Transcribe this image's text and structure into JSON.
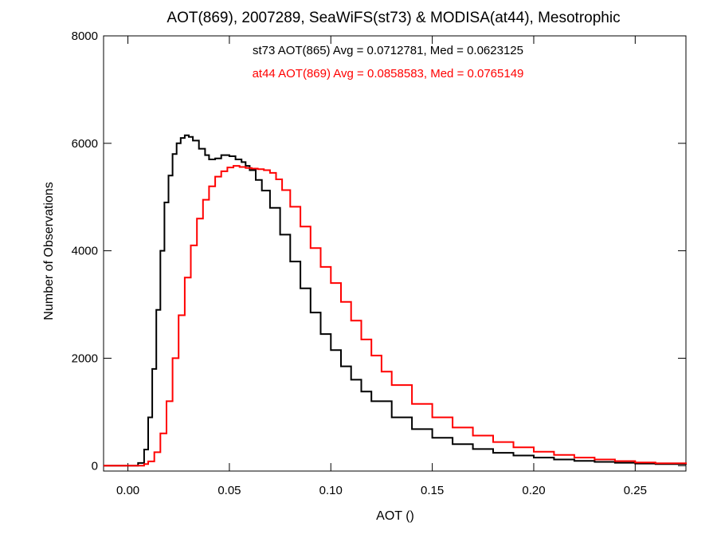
{
  "chart_data": {
    "type": "line",
    "step": true,
    "title": "AOT(869), 2007289, SeaWiFS(st73) & MODISA(at44), Mesotrophic",
    "xlabel": "AOT ()",
    "ylabel": "Number of Observations",
    "xlim": [
      -0.012,
      0.275
    ],
    "ylim": [
      -100,
      8000
    ],
    "xticks": [
      0.0,
      0.05,
      0.1,
      0.15,
      0.2,
      0.25
    ],
    "xtick_labels": [
      "0.00",
      "0.05",
      "0.10",
      "0.15",
      "0.20",
      "0.25"
    ],
    "yticks": [
      0,
      2000,
      4000,
      6000,
      8000
    ],
    "ytick_labels": [
      "0",
      "2000",
      "4000",
      "6000",
      "8000"
    ],
    "grid": false,
    "annotations": [
      {
        "text": "st73 AOT(865) Avg = 0.0712781, Med = 0.0623125",
        "color": "#000000"
      },
      {
        "text": "at44 AOT(869) Avg = 0.0858583, Med = 0.0765149",
        "color": "#ff0000"
      }
    ],
    "series": [
      {
        "color": "#000000",
        "x": [
          -0.012,
          0.003,
          0.005,
          0.008,
          0.01,
          0.012,
          0.014,
          0.016,
          0.018,
          0.02,
          0.022,
          0.024,
          0.026,
          0.028,
          0.03,
          0.032,
          0.035,
          0.038,
          0.04,
          0.043,
          0.046,
          0.05,
          0.053,
          0.056,
          0.058,
          0.06,
          0.063,
          0.066,
          0.07,
          0.075,
          0.08,
          0.085,
          0.09,
          0.095,
          0.1,
          0.105,
          0.11,
          0.115,
          0.12,
          0.13,
          0.14,
          0.15,
          0.16,
          0.17,
          0.18,
          0.19,
          0.2,
          0.21,
          0.22,
          0.23,
          0.24,
          0.25,
          0.26,
          0.275
        ],
        "values": [
          0,
          0,
          50,
          300,
          900,
          1800,
          2900,
          4000,
          4900,
          5400,
          5800,
          6000,
          6100,
          6150,
          6120,
          6050,
          5900,
          5780,
          5700,
          5720,
          5780,
          5760,
          5700,
          5650,
          5580,
          5500,
          5320,
          5120,
          4800,
          4300,
          3800,
          3300,
          2850,
          2450,
          2150,
          1850,
          1600,
          1380,
          1200,
          900,
          680,
          520,
          400,
          310,
          240,
          190,
          150,
          115,
          90,
          70,
          55,
          40,
          30,
          20
        ]
      },
      {
        "color": "#ff0000",
        "x": [
          -0.012,
          0.005,
          0.008,
          0.01,
          0.013,
          0.016,
          0.019,
          0.022,
          0.025,
          0.028,
          0.031,
          0.034,
          0.037,
          0.04,
          0.043,
          0.046,
          0.049,
          0.052,
          0.055,
          0.058,
          0.061,
          0.064,
          0.067,
          0.07,
          0.073,
          0.076,
          0.08,
          0.085,
          0.09,
          0.095,
          0.1,
          0.105,
          0.11,
          0.115,
          0.12,
          0.125,
          0.13,
          0.14,
          0.15,
          0.16,
          0.17,
          0.18,
          0.19,
          0.2,
          0.21,
          0.22,
          0.23,
          0.24,
          0.25,
          0.26,
          0.275
        ],
        "values": [
          0,
          0,
          30,
          80,
          250,
          600,
          1200,
          2000,
          2800,
          3500,
          4100,
          4600,
          4950,
          5200,
          5380,
          5480,
          5550,
          5580,
          5560,
          5540,
          5530,
          5520,
          5500,
          5450,
          5330,
          5130,
          4820,
          4450,
          4050,
          3700,
          3400,
          3050,
          2700,
          2350,
          2050,
          1750,
          1500,
          1150,
          900,
          710,
          560,
          440,
          340,
          260,
          200,
          150,
          115,
          85,
          60,
          45,
          30
        ]
      }
    ]
  }
}
